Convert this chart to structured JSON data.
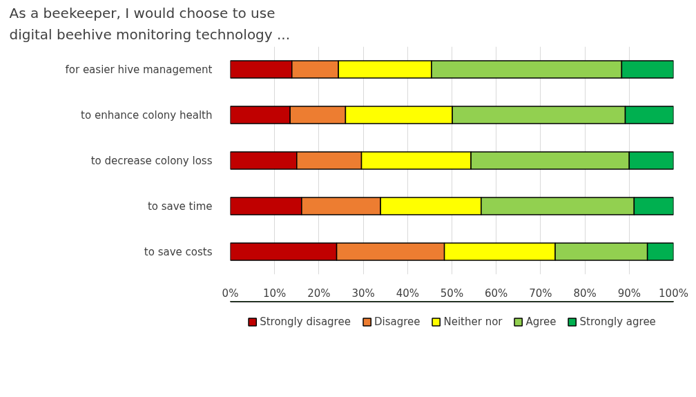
{
  "chart_data": {
    "type": "bar",
    "orientation": "horizontal",
    "stacked": true,
    "title": "As a beekeeper, I would choose to use\ndigital beehive monitoring technology ...",
    "categories": [
      "for easier hive management",
      "to enhance colony health",
      "to decrease colony loss",
      "to save time",
      "to save costs"
    ],
    "series": [
      {
        "name": "Strongly disagree",
        "color": "#c00000",
        "values": [
          13.9,
          13.5,
          15.0,
          16.1,
          24.0
        ]
      },
      {
        "name": "Disagree",
        "color": "#ed7d31",
        "values": [
          10.5,
          12.5,
          14.6,
          17.8,
          24.3
        ]
      },
      {
        "name": "Neither nor",
        "color": "#ffff00",
        "values": [
          21.0,
          24.1,
          24.7,
          22.7,
          25.0
        ]
      },
      {
        "name": "Agree",
        "color": "#92d050",
        "values": [
          42.9,
          39.0,
          35.7,
          34.5,
          20.8
        ]
      },
      {
        "name": "Strongly agree",
        "color": "#00b050",
        "values": [
          11.7,
          10.9,
          10.0,
          8.9,
          5.9
        ]
      }
    ],
    "xlim": [
      0,
      100
    ],
    "xticks": [
      {
        "value": 0,
        "label": "0%"
      },
      {
        "value": 10,
        "label": "10%"
      },
      {
        "value": 20,
        "label": "20%"
      },
      {
        "value": 30,
        "label": "30%"
      },
      {
        "value": 40,
        "label": "40%"
      },
      {
        "value": 50,
        "label": "50%"
      },
      {
        "value": 60,
        "label": "60%"
      },
      {
        "value": 70,
        "label": "70%"
      },
      {
        "value": 80,
        "label": "80%"
      },
      {
        "value": 90,
        "label": "90%"
      },
      {
        "value": 100,
        "label": "100%"
      }
    ],
    "grid": "x",
    "legend": "bottom"
  }
}
